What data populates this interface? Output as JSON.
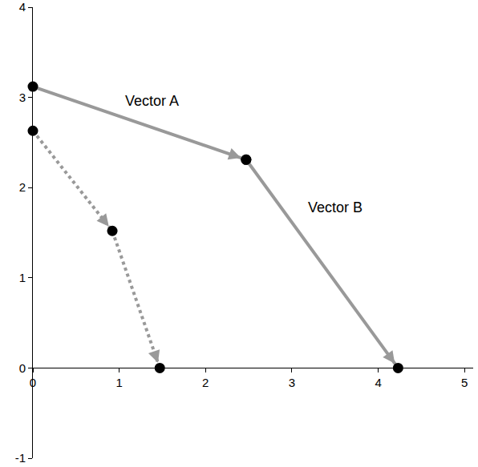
{
  "chart_data": {
    "type": "line",
    "xlim": [
      0,
      5.1
    ],
    "ylim": [
      -1,
      4
    ],
    "xticks": [
      0,
      1,
      2,
      3,
      4,
      5
    ],
    "yticks": [
      -1,
      0,
      1,
      2,
      3,
      4
    ],
    "grid": false,
    "marker": "circle",
    "series": [
      {
        "x": [
          0,
          2.47
        ],
        "values": [
          3.12,
          2.31
        ],
        "color": "#999999",
        "line_style": "solid"
      },
      {
        "x": [
          2.47,
          4.23
        ],
        "values": [
          2.31,
          0
        ],
        "color": "#999999",
        "line_style": "solid"
      },
      {
        "x": [
          0,
          0.92,
          1.47
        ],
        "values": [
          2.63,
          1.52,
          0
        ],
        "color": "#999999",
        "line_style": "dotted"
      }
    ],
    "annotations": [
      {
        "text": "Vector A",
        "x": 1.38,
        "y": 2.96
      },
      {
        "text": "Vector B",
        "x": 3.5,
        "y": 1.78
      }
    ]
  }
}
